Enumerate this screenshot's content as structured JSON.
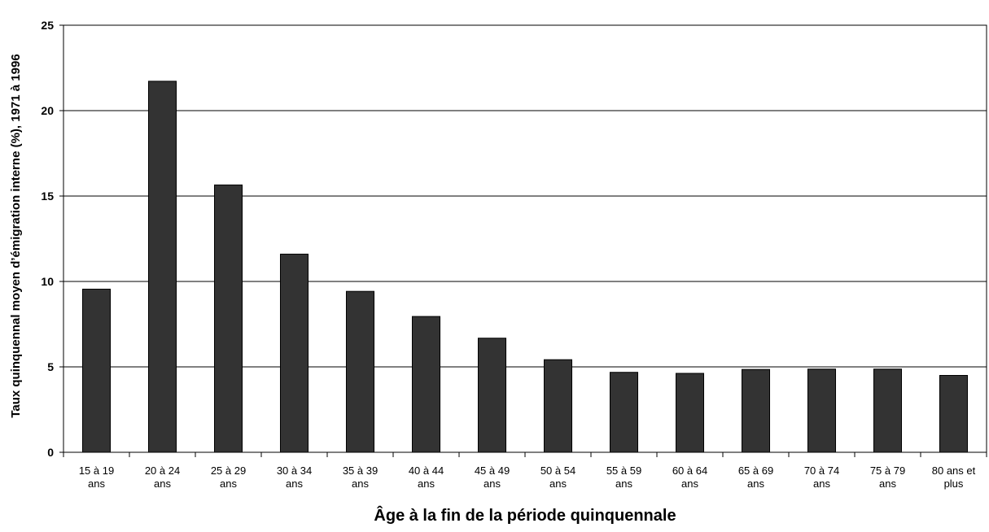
{
  "chart_data": {
    "type": "bar",
    "categories": [
      [
        "15 à 19",
        "ans"
      ],
      [
        "20 à 24",
        "ans"
      ],
      [
        "25 à 29",
        "ans"
      ],
      [
        "30 à 34",
        "ans"
      ],
      [
        "35 à 39",
        "ans"
      ],
      [
        "40 à 44",
        "ans"
      ],
      [
        "45 à 49",
        "ans"
      ],
      [
        "50 à 54",
        "ans"
      ],
      [
        "55 à 59",
        "ans"
      ],
      [
        "60 à 64",
        "ans"
      ],
      [
        "65 à 69",
        "ans"
      ],
      [
        "70 à 74",
        "ans"
      ],
      [
        "75 à 79",
        "ans"
      ],
      [
        "80 ans et",
        "plus"
      ]
    ],
    "values": [
      9.55,
      21.72,
      15.65,
      11.6,
      9.42,
      7.95,
      6.68,
      5.42,
      4.68,
      4.62,
      4.85,
      4.87,
      4.87,
      4.5
    ],
    "xlabel": "Âge à la fin de la période quinquennale",
    "ylabel": "Taux quinquennal moyen d’émigration interne (%), 1971 à 1996",
    "ylim": [
      0,
      25
    ],
    "yticks": [
      "0",
      "5",
      "10",
      "15",
      "20",
      "25"
    ],
    "grid": true,
    "bar_color": "#333333"
  }
}
